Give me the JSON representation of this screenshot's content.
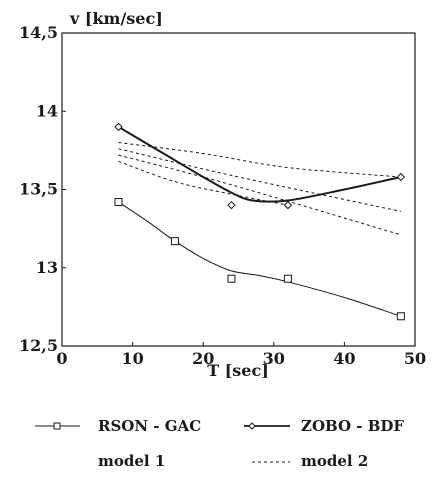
{
  "chart_data": {
    "type": "line",
    "ylabel": "v [km/sec]",
    "xlabel": "T [sec]",
    "xlim": [
      0,
      50
    ],
    "ylim": [
      12.5,
      14.5
    ],
    "x_ticks": [
      "0",
      "10",
      "20",
      "30",
      "40",
      "50"
    ],
    "y_ticks": [
      "12,5",
      "13",
      "13,5",
      "14",
      "14,5"
    ],
    "grid": false,
    "legend_position": "bottom",
    "series": [
      {
        "name": "RSON - GAC",
        "marker": "square",
        "line": "solid-thin",
        "points": [
          [
            8,
            13.42
          ],
          [
            16,
            13.17
          ],
          [
            24,
            12.93
          ],
          [
            32,
            12.93
          ],
          [
            48,
            12.69
          ]
        ],
        "curve": [
          [
            8,
            13.42
          ],
          [
            12,
            13.3
          ],
          [
            16,
            13.17
          ],
          [
            20,
            13.06
          ],
          [
            24,
            12.98
          ],
          [
            28,
            12.95
          ],
          [
            32,
            12.91
          ],
          [
            40,
            12.81
          ],
          [
            48,
            12.69
          ]
        ]
      },
      {
        "name": "ZOBO - BDF",
        "marker": "diamond",
        "line": "solid-thick",
        "points": [
          [
            8,
            13.9
          ],
          [
            24,
            13.4
          ],
          [
            32,
            13.4
          ],
          [
            48,
            13.58
          ]
        ],
        "curve": [
          [
            8,
            13.9
          ],
          [
            14,
            13.74
          ],
          [
            20,
            13.58
          ],
          [
            24,
            13.48
          ],
          [
            27,
            13.43
          ],
          [
            32,
            13.43
          ],
          [
            40,
            13.5
          ],
          [
            48,
            13.58
          ]
        ]
      },
      {
        "name": "model 1",
        "line": "none",
        "curves": []
      },
      {
        "name": "model 2",
        "line": "dashed",
        "curves": [
          [
            [
              8,
              13.8
            ],
            [
              20,
              13.73
            ],
            [
              32,
              13.64
            ],
            [
              48,
              13.58
            ]
          ],
          [
            [
              8,
              13.76
            ],
            [
              24,
              13.59
            ],
            [
              48,
              13.36
            ]
          ],
          [
            [
              8,
              13.72
            ],
            [
              24,
              13.53
            ],
            [
              48,
              13.21
            ]
          ],
          [
            [
              8,
              13.68
            ],
            [
              16,
              13.55
            ],
            [
              24,
              13.47
            ],
            [
              32,
              13.4
            ]
          ]
        ]
      }
    ]
  },
  "colors": {
    "ink": "#1a1a1a",
    "marker_fill": "#ffffff"
  }
}
